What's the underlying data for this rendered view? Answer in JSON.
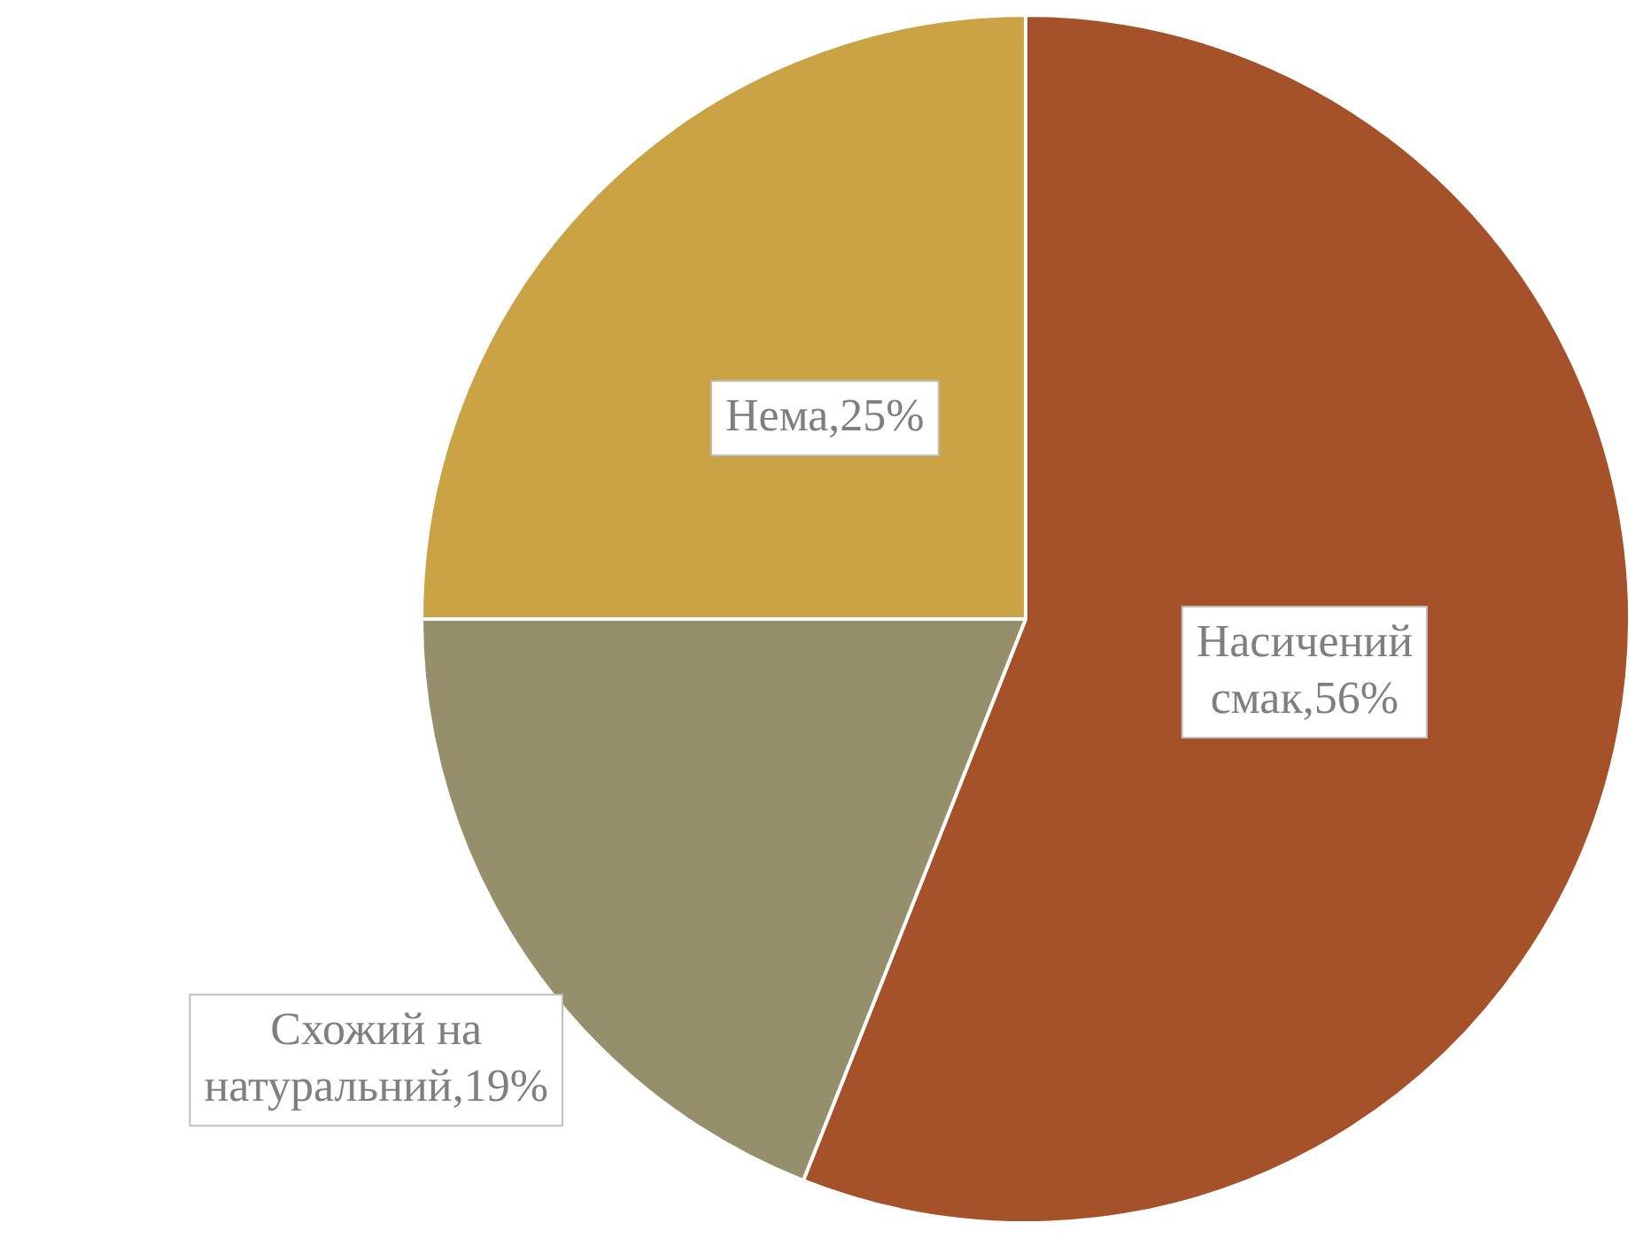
{
  "chart_data": {
    "type": "pie",
    "categories": [
      "Насичений смак",
      "Схожий на натуральний",
      "Нема"
    ],
    "values": [
      56,
      19,
      25
    ],
    "colors": [
      "#a5522a",
      "#958f6b",
      "#c9a344"
    ],
    "value_labels": [
      "56%",
      "19%",
      "25%"
    ],
    "legend": false
  }
}
